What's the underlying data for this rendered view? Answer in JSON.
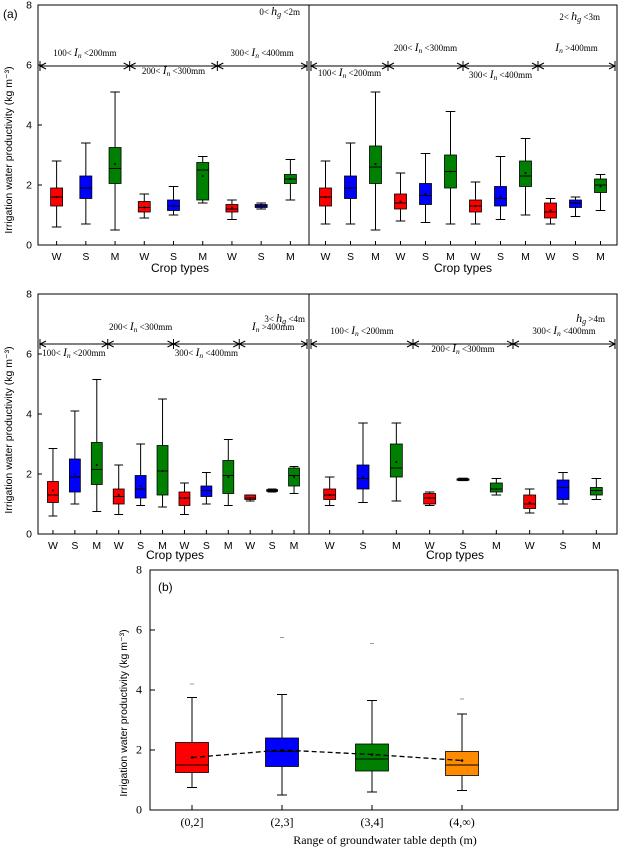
{
  "figure": {
    "panel_a_label": "(a)",
    "panel_b_label": "(b)",
    "ylabel_a": "Irrigation water productivity (kg m⁻³)",
    "xlabel_a": "Crop types",
    "ylabel_b": "Irrigation water productivity (kg m⁻³)",
    "xlabel_b": "Range of groundwater table depth (m)"
  },
  "colors": {
    "W": "#ff0000",
    "S": "#0000ff",
    "M": "#008000",
    "D4": "#ff8c00"
  },
  "chart_data": [
    {
      "type": "box",
      "panel": "a-1",
      "depth_label": [
        "0<",
        "h",
        "g",
        "<2m"
      ],
      "ylim": [
        0,
        8
      ],
      "yticks": [
        0,
        2,
        4,
        6,
        8
      ],
      "categories": [
        "W",
        "S",
        "M",
        "W",
        "S",
        "M",
        "W",
        "S",
        "M"
      ],
      "groups": [
        {
          "label": [
            "100<",
            "I",
            "n",
            "<200mm"
          ],
          "range": [
            0,
            3
          ]
        },
        {
          "label": [
            "200<",
            "I",
            "n",
            "<300mm"
          ],
          "range": [
            3,
            6
          ]
        },
        {
          "label": [
            "300<",
            "I",
            "n",
            "<400mm"
          ],
          "range": [
            6,
            9
          ]
        }
      ],
      "boxes": [
        {
          "crop": "W",
          "min": 0.6,
          "q1": 1.3,
          "median": 1.6,
          "q3": 1.9,
          "max": 2.8,
          "mean": 1.6
        },
        {
          "crop": "S",
          "min": 0.7,
          "q1": 1.55,
          "median": 1.9,
          "q3": 2.3,
          "max": 3.4,
          "mean": 1.9
        },
        {
          "crop": "M",
          "min": 0.5,
          "q1": 2.05,
          "median": 2.55,
          "q3": 3.25,
          "max": 5.1,
          "mean": 2.7
        },
        {
          "crop": "W",
          "min": 0.9,
          "q1": 1.1,
          "median": 1.25,
          "q3": 1.45,
          "max": 1.7,
          "mean": 1.25
        },
        {
          "crop": "S",
          "min": 1.0,
          "q1": 1.15,
          "median": 1.3,
          "q3": 1.5,
          "max": 1.95,
          "mean": 1.3
        },
        {
          "crop": "M",
          "min": 1.4,
          "q1": 1.5,
          "median": 2.5,
          "q3": 2.75,
          "max": 2.95,
          "mean": 2.3
        },
        {
          "crop": "W",
          "min": 0.85,
          "q1": 1.1,
          "median": 1.2,
          "q3": 1.35,
          "max": 1.5,
          "mean": 1.25
        },
        {
          "crop": "S",
          "min": 1.2,
          "q1": 1.25,
          "median": 1.3,
          "q3": 1.35,
          "max": 1.4,
          "mean": 1.3
        },
        {
          "crop": "M",
          "min": 1.5,
          "q1": 2.05,
          "median": 2.2,
          "q3": 2.35,
          "max": 2.85,
          "mean": 2.2
        }
      ]
    },
    {
      "type": "box",
      "panel": "a-2",
      "depth_label": [
        "2<",
        "h",
        "g",
        "<3m"
      ],
      "ylim": [
        0,
        8
      ],
      "categories": [
        "W",
        "S",
        "M",
        "W",
        "S",
        "M",
        "W",
        "S",
        "M",
        "W",
        "S",
        "M"
      ],
      "groups": [
        {
          "label": [
            "100<",
            "I",
            "n",
            "<200mm"
          ],
          "range": [
            0,
            3
          ]
        },
        {
          "label": [
            "200<",
            "I",
            "n",
            "<300mm"
          ],
          "range": [
            3,
            6
          ]
        },
        {
          "label": [
            "300<",
            "I",
            "n",
            "<400mm"
          ],
          "range": [
            6,
            9
          ]
        },
        {
          "label": [
            "",
            "I",
            "n",
            ">400mm"
          ],
          "range": [
            9,
            12
          ]
        }
      ],
      "boxes": [
        {
          "crop": "W",
          "min": 0.7,
          "q1": 1.3,
          "median": 1.6,
          "q3": 1.9,
          "max": 2.8,
          "mean": 1.6
        },
        {
          "crop": "S",
          "min": 0.7,
          "q1": 1.55,
          "median": 1.9,
          "q3": 2.3,
          "max": 3.4,
          "mean": 1.9
        },
        {
          "crop": "M",
          "min": 0.5,
          "q1": 2.05,
          "median": 2.6,
          "q3": 3.3,
          "max": 5.1,
          "mean": 2.7
        },
        {
          "crop": "W",
          "min": 0.8,
          "q1": 1.2,
          "median": 1.4,
          "q3": 1.7,
          "max": 2.4,
          "mean": 1.45
        },
        {
          "crop": "S",
          "min": 0.75,
          "q1": 1.35,
          "median": 1.65,
          "q3": 2.05,
          "max": 3.05,
          "mean": 1.7
        },
        {
          "crop": "M",
          "min": 0.7,
          "q1": 1.9,
          "median": 2.45,
          "q3": 3.0,
          "max": 4.45,
          "mean": 2.45
        },
        {
          "crop": "W",
          "min": 0.7,
          "q1": 1.1,
          "median": 1.3,
          "q3": 1.5,
          "max": 2.1,
          "mean": 1.3
        },
        {
          "crop": "S",
          "min": 0.85,
          "q1": 1.3,
          "median": 1.55,
          "q3": 1.95,
          "max": 2.95,
          "mean": 1.6
        },
        {
          "crop": "M",
          "min": 1.0,
          "q1": 1.95,
          "median": 2.3,
          "q3": 2.8,
          "max": 3.55,
          "mean": 2.4
        },
        {
          "crop": "W",
          "min": 0.7,
          "q1": 0.9,
          "median": 1.1,
          "q3": 1.4,
          "max": 1.55,
          "mean": 1.15
        },
        {
          "crop": "S",
          "min": 0.95,
          "q1": 1.25,
          "median": 1.4,
          "q3": 1.5,
          "max": 1.6,
          "mean": 1.4
        },
        {
          "crop": "M",
          "min": 1.15,
          "q1": 1.75,
          "median": 2.0,
          "q3": 2.2,
          "max": 2.35,
          "mean": 1.95
        }
      ]
    },
    {
      "type": "box",
      "panel": "a-3",
      "depth_label": [
        "3<",
        "h",
        "g",
        "<4m"
      ],
      "ylim": [
        0,
        8
      ],
      "yticks": [
        0,
        2,
        4,
        6,
        8
      ],
      "categories": [
        "W",
        "S",
        "M",
        "W",
        "S",
        "M",
        "W",
        "S",
        "M",
        "W",
        "S",
        "M"
      ],
      "groups": [
        {
          "label": [
            "100<",
            "I",
            "n",
            "<200mm"
          ],
          "range": [
            0,
            3
          ]
        },
        {
          "label": [
            "200<",
            "I",
            "n",
            "<300mm"
          ],
          "range": [
            3,
            6
          ]
        },
        {
          "label": [
            "300<",
            "I",
            "n",
            "<400mm"
          ],
          "range": [
            6,
            9
          ]
        },
        {
          "label": [
            "",
            "I",
            "n",
            ">400mm"
          ],
          "range": [
            9,
            12
          ]
        }
      ],
      "boxes": [
        {
          "crop": "W",
          "min": 0.6,
          "q1": 1.05,
          "median": 1.3,
          "q3": 1.75,
          "max": 2.85,
          "mean": 1.45
        },
        {
          "crop": "S",
          "min": 1.0,
          "q1": 1.4,
          "median": 1.9,
          "q3": 2.5,
          "max": 4.1,
          "mean": 2.0
        },
        {
          "crop": "M",
          "min": 0.75,
          "q1": 1.65,
          "median": 2.15,
          "q3": 3.05,
          "max": 5.15,
          "mean": 2.3
        },
        {
          "crop": "W",
          "min": 0.65,
          "q1": 1.0,
          "median": 1.25,
          "q3": 1.5,
          "max": 2.3,
          "mean": 1.3
        },
        {
          "crop": "S",
          "min": 0.95,
          "q1": 1.2,
          "median": 1.5,
          "q3": 1.95,
          "max": 3.0,
          "mean": 1.6
        },
        {
          "crop": "M",
          "min": 0.9,
          "q1": 1.3,
          "median": 2.1,
          "q3": 2.95,
          "max": 4.5,
          "mean": 2.1
        },
        {
          "crop": "W",
          "min": 0.65,
          "q1": 0.95,
          "median": 1.2,
          "q3": 1.4,
          "max": 1.7,
          "mean": 1.2
        },
        {
          "crop": "S",
          "min": 1.0,
          "q1": 1.25,
          "median": 1.45,
          "q3": 1.6,
          "max": 2.05,
          "mean": 1.45
        },
        {
          "crop": "M",
          "min": 0.95,
          "q1": 1.35,
          "median": 1.95,
          "q3": 2.45,
          "max": 3.15,
          "mean": 1.9
        },
        {
          "crop": "W",
          "min": 1.1,
          "q1": 1.15,
          "median": 1.2,
          "q3": 1.3,
          "max": 1.3,
          "mean": 1.2
        },
        {
          "crop": "S",
          "min": 1.4,
          "q1": 1.42,
          "median": 1.45,
          "q3": 1.48,
          "max": 1.5,
          "mean": 1.45
        },
        {
          "crop": "M",
          "min": 1.35,
          "q1": 1.6,
          "median": 1.95,
          "q3": 2.2,
          "max": 2.25,
          "mean": 1.9
        }
      ]
    },
    {
      "type": "box",
      "panel": "a-4",
      "depth_label": [
        "",
        "h",
        "g",
        ">4m"
      ],
      "ylim": [
        0,
        8
      ],
      "categories": [
        "W",
        "S",
        "M",
        "W",
        "S",
        "M",
        "W",
        "S",
        "M"
      ],
      "groups": [
        {
          "label": [
            "100<",
            "I",
            "n",
            "<200mm"
          ],
          "range": [
            0,
            3
          ]
        },
        {
          "label": [
            "200<",
            "I",
            "n",
            "<300mm"
          ],
          "range": [
            3,
            6
          ]
        },
        {
          "label": [
            "300<",
            "I",
            "n",
            "<400mm"
          ],
          "range": [
            6,
            9
          ]
        }
      ],
      "boxes": [
        {
          "crop": "W",
          "min": 0.95,
          "q1": 1.15,
          "median": 1.3,
          "q3": 1.5,
          "max": 1.9,
          "mean": 1.3
        },
        {
          "crop": "S",
          "min": 1.05,
          "q1": 1.5,
          "median": 1.85,
          "q3": 2.3,
          "max": 3.7,
          "mean": 1.9
        },
        {
          "crop": "M",
          "min": 1.1,
          "q1": 1.9,
          "median": 2.2,
          "q3": 3.0,
          "max": 3.7,
          "mean": 2.4
        },
        {
          "crop": "W",
          "min": 0.95,
          "q1": 1.0,
          "median": 1.2,
          "q3": 1.35,
          "max": 1.4,
          "mean": 1.2
        },
        {
          "crop": "S",
          "min": 1.78,
          "q1": 1.8,
          "median": 1.82,
          "q3": 1.84,
          "max": 1.86,
          "mean": 1.82
        },
        {
          "crop": "M",
          "min": 1.3,
          "q1": 1.4,
          "median": 1.5,
          "q3": 1.7,
          "max": 1.85,
          "mean": 1.5
        },
        {
          "crop": "W",
          "min": 0.7,
          "q1": 0.85,
          "median": 1.0,
          "q3": 1.3,
          "max": 1.5,
          "mean": 1.05
        },
        {
          "crop": "S",
          "min": 1.0,
          "q1": 1.15,
          "median": 1.55,
          "q3": 1.8,
          "max": 2.05,
          "mean": 1.55
        },
        {
          "crop": "M",
          "min": 1.15,
          "q1": 1.3,
          "median": 1.45,
          "q3": 1.55,
          "max": 1.85,
          "mean": 1.45
        }
      ]
    },
    {
      "type": "box",
      "panel": "b",
      "ylim": [
        0,
        8
      ],
      "yticks": [
        0,
        2,
        4,
        6,
        8
      ],
      "categories": [
        "(0,2]",
        "(2,3]",
        "(3,4]",
        "(4,∞)"
      ],
      "boxes": [
        {
          "min": 0.75,
          "q1": 1.25,
          "median": 1.5,
          "q3": 2.25,
          "max": 3.75,
          "mean": 1.75,
          "outlier": 4.2
        },
        {
          "min": 0.5,
          "q1": 1.45,
          "median": 1.95,
          "q3": 2.4,
          "max": 3.85,
          "mean": 2.0,
          "outlier": 5.75
        },
        {
          "min": 0.6,
          "q1": 1.3,
          "median": 1.7,
          "q3": 2.2,
          "max": 3.65,
          "mean": 1.85,
          "outlier": 5.55
        },
        {
          "min": 0.65,
          "q1": 1.15,
          "median": 1.5,
          "q3": 1.95,
          "max": 3.2,
          "mean": 1.65,
          "outlier": 3.7
        }
      ],
      "mean_line": "dashed"
    }
  ]
}
